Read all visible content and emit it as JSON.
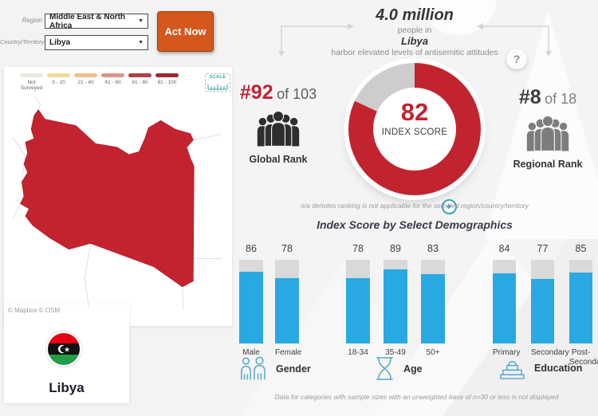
{
  "filters": {
    "region_label": "Region",
    "region_value": "Middle East & North Africa",
    "country_label": "Country/Territory",
    "country_value": "Libya",
    "act_now_label": "Act Now"
  },
  "map": {
    "legend": [
      {
        "label": "Not Surveyed",
        "color": "#eae8e1"
      },
      {
        "label": "0 - 20",
        "color": "#ecdd9b"
      },
      {
        "label": "21 - 40",
        "color": "#eebf8b"
      },
      {
        "label": "41 - 60",
        "color": "#e09287"
      },
      {
        "label": "61 - 80",
        "color": "#b23f4a"
      },
      {
        "label": "81 - 100",
        "color": "#9c2936"
      }
    ],
    "scale_label": "SCALE",
    "attribution": "© Mapbox © OSM",
    "country_name": "Libya",
    "country_fill": "#c3222f"
  },
  "hero": {
    "population": "4.0 million",
    "line2": "people in",
    "country": "Libya",
    "line4": "harbor elevated levels of antisemitic attitudes"
  },
  "help_label": "?",
  "ranks": {
    "global": {
      "rank": "#92",
      "of": "of 103",
      "label": "Global Rank"
    },
    "regional": {
      "rank": "#8",
      "of": "of 18",
      "label": "Regional Rank"
    }
  },
  "donut": {
    "score": "82",
    "value": 82,
    "label": "INDEX SCORE",
    "plus": "+",
    "color": "#c2242f",
    "rest_color": "#cdcdcd"
  },
  "notes": {
    "na": "n/a denotes ranking is not applicable for the selected region/country/territory",
    "sample": "Data for categories with sample sizes with an unweighted base of n=30 or less is not displayed"
  },
  "demographics": {
    "title": "Index Score by Select Demographics",
    "bar_color": "#29a9e1",
    "bar_bg": "#d9d9d9",
    "max": 100,
    "groups": [
      {
        "name": "Gender",
        "bars": [
          {
            "label": "Male",
            "value": 86
          },
          {
            "label": "Female",
            "value": 78
          }
        ]
      },
      {
        "name": "Age",
        "bars": [
          {
            "label": "18-34",
            "value": 78
          },
          {
            "label": "35-49",
            "value": 89
          },
          {
            "label": "50+",
            "value": 83
          }
        ]
      },
      {
        "name": "Education",
        "bars": [
          {
            "label": "Primary",
            "value": 84
          },
          {
            "label": "Secondary",
            "value": 77
          },
          {
            "label": "Post-Secondary",
            "value": 85
          }
        ]
      }
    ]
  },
  "chart_data": [
    {
      "type": "pie",
      "title": "Index Score",
      "labels": [
        "Index Score",
        "Remainder"
      ],
      "values": [
        82,
        18
      ]
    },
    {
      "type": "bar",
      "title": "Index Score by Select Demographics",
      "categories": [
        "Male",
        "Female",
        "18-34",
        "35-49",
        "50+",
        "Primary",
        "Secondary",
        "Post-Secondary"
      ],
      "values": [
        86,
        78,
        78,
        89,
        83,
        84,
        77,
        85
      ],
      "ylim": [
        0,
        100
      ],
      "group_of_category": [
        "Gender",
        "Gender",
        "Age",
        "Age",
        "Age",
        "Education",
        "Education",
        "Education"
      ]
    }
  ]
}
